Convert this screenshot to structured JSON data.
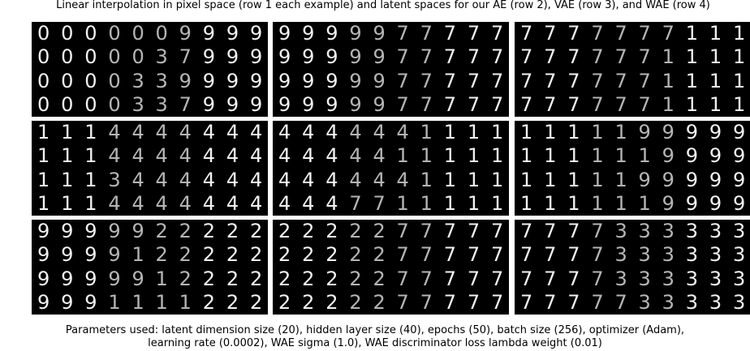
{
  "figure": {
    "title": "Linear interpolation in pixel space (row 1 each example) and latent spaces for our AE (row 2), VAE (row 3), and WAE (row 4)",
    "caption_line1": "Parameters used: latent dimension size (20), hidden layer size (40), epochs (50), batch size (256), optimizer (Adam),",
    "caption_line2": "learning rate (0.0002), WAE sigma (1.0), WAE discriminator loss lambda weight (0.01)"
  },
  "panel_rows": [
    {
      "panels": [
        {
          "rows": [
            "0000009999",
            "0000037999",
            "0000339999",
            "0000337999"
          ]
        },
        {
          "rows": [
            "9999977777",
            "9999977777",
            "9999977777",
            "9999977777"
          ]
        },
        {
          "rows": [
            "7777777111",
            "7777771111",
            "7777771111",
            "7777771111"
          ]
        }
      ]
    },
    {
      "panels": [
        {
          "rows": [
            "1114444444",
            "1114444444",
            "1113444444",
            "1114444444"
          ]
        },
        {
          "rows": [
            "4444441111",
            "4444411111",
            "4444441111",
            "4447711111"
          ]
        },
        {
          "rows": [
            "1111199999",
            "1111119999",
            "1111199999",
            "1111119999"
          ]
        }
      ]
    },
    {
      "panels": [
        {
          "rows": [
            "9999922222",
            "9999122222",
            "9999912222",
            "9991111222"
          ]
        },
        {
          "rows": [
            "2222277777",
            "2222277777",
            "2222277777",
            "2222277777"
          ]
        },
        {
          "rows": [
            "7777333333",
            "7777333333",
            "7777333333",
            "7777733333"
          ]
        }
      ]
    }
  ],
  "colors": {
    "panel_background": "#000000",
    "digit_color": "#f2f2f2"
  }
}
